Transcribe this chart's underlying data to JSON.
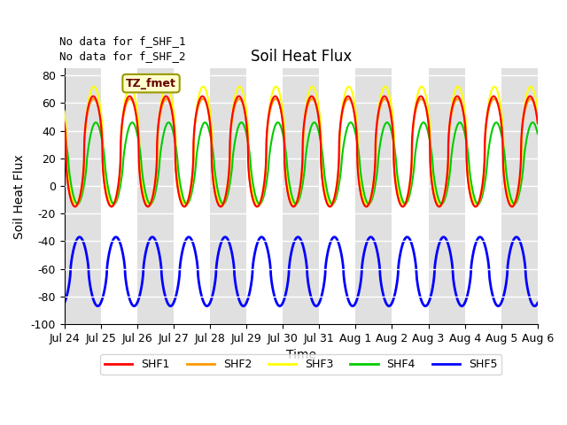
{
  "title": "Soil Heat Flux",
  "xlabel": "Time",
  "ylabel": "Soil Heat Flux",
  "ylim": [
    -100,
    85
  ],
  "yticks": [
    -100,
    -80,
    -60,
    -40,
    -20,
    0,
    20,
    40,
    60,
    80
  ],
  "xlim_days": [
    0,
    13
  ],
  "xtick_labels": [
    "Jul 24",
    "Jul 25",
    "Jul 26",
    "Jul 27",
    "Jul 28",
    "Jul 29",
    "Jul 30",
    "Jul 31",
    "Aug 1",
    "Aug 2",
    "Aug 3",
    "Aug 4",
    "Aug 5",
    "Aug 6"
  ],
  "annotation1": "No data for f_SHF_1",
  "annotation2": "No data for f_SHF_2",
  "tz_label": "TZ_fmet",
  "colors": {
    "SHF1": "#ff0000",
    "SHF2": "#ff9900",
    "SHF3": "#ffff00",
    "SHF4": "#00cc00",
    "SHF5": "#0000ff"
  },
  "band_color": "#e0e0e0",
  "background_color": "#ffffff",
  "n_days": 13,
  "shf1_peak": 65,
  "shf1_trough": -15,
  "shf2_peak": 63,
  "shf2_trough": -15,
  "shf3_peak": 72,
  "shf3_trough": -13,
  "shf4_peak": 46,
  "shf4_trough": -13,
  "shf5_peak": -37,
  "shf5_trough": -87,
  "peak_hour": 13,
  "trough_hour": 3
}
